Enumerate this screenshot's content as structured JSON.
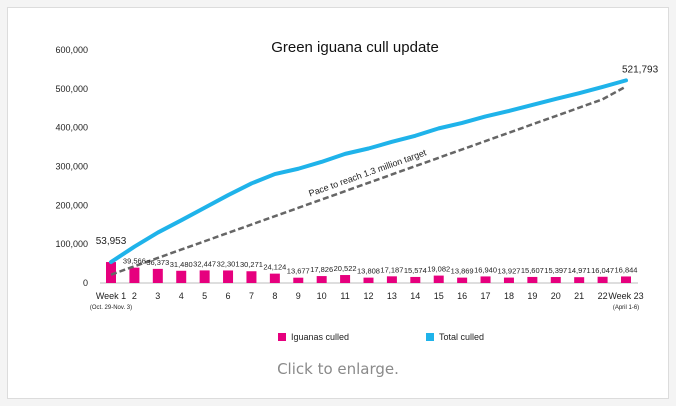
{
  "caption": "Click to enlarge.",
  "chart_data": {
    "type": "bar+line",
    "title": "Green iguana cull update",
    "categories": [
      "Week 1",
      "2",
      "3",
      "4",
      "5",
      "6",
      "7",
      "8",
      "9",
      "10",
      "11",
      "12",
      "13",
      "14",
      "15",
      "16",
      "17",
      "18",
      "19",
      "20",
      "21",
      "22",
      "Week 23"
    ],
    "category_sublabels": {
      "0": "(Oct. 29-Nov. 3)",
      "22": "(April 1-6)"
    },
    "yticks": [
      0,
      100000,
      200000,
      300000,
      400000,
      500000,
      600000
    ],
    "ytick_labels": [
      "0",
      "100,000",
      "200,000",
      "300,000",
      "400,000",
      "500,000",
      "600,000"
    ],
    "ylim": [
      0,
      600000
    ],
    "grid": false,
    "legend_position": "bottom",
    "series": [
      {
        "name": "Iguanas culled",
        "kind": "bar",
        "color": "#e6007e",
        "values": [
          53953,
          39566,
          36373,
          31480,
          32447,
          32301,
          30271,
          24124,
          13677,
          17826,
          20522,
          13808,
          17187,
          15574,
          19082,
          13869,
          16940,
          13927,
          15607,
          15397,
          14971,
          16047,
          16844
        ],
        "labels": [
          "53,953",
          "39,566",
          "36,373",
          "31,480",
          "32,447",
          "32,301",
          "30,271",
          "24,124",
          "13,677",
          "17,826",
          "20,522",
          "13,808",
          "17,187",
          "15,574",
          "19,082",
          "13,869",
          "16,940",
          "13,927",
          "15,607",
          "15,397",
          "14,971",
          "16,047",
          "16,844"
        ]
      },
      {
        "name": "Total culled",
        "kind": "line",
        "color": "#1fb3ea",
        "values": [
          53953,
          93519,
          129892,
          161372,
          193819,
          226120,
          256391,
          280515,
          294192,
          312018,
          332540,
          346348,
          363535,
          379109,
          398191,
          412060,
          429000,
          442927,
          458534,
          473931,
          488902,
          504949,
          521793
        ],
        "end_label": "521,793"
      },
      {
        "kind": "target-line",
        "color": "#666666",
        "values": [
          21500,
          43000,
          64500,
          86000,
          107500,
          129000,
          150500,
          172000,
          193500,
          215000,
          236500,
          258000,
          279500,
          301000,
          322500,
          344000,
          365500,
          387000,
          408500,
          430000,
          451500,
          473000,
          506000
        ],
        "label": "Pace to reach 1.3 million target"
      }
    ]
  }
}
